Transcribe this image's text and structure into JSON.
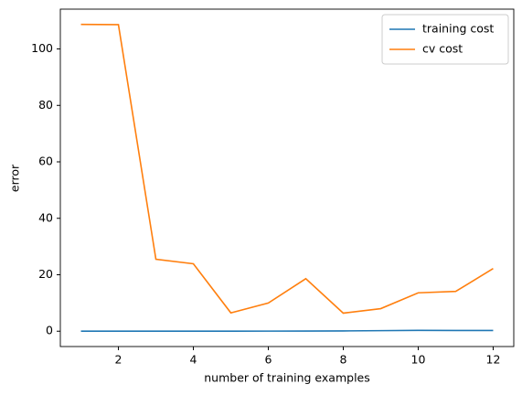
{
  "chart_data": {
    "type": "line",
    "xlabel": "number of training examples",
    "ylabel": "error",
    "x": [
      1,
      2,
      3,
      4,
      5,
      6,
      7,
      8,
      9,
      10,
      11,
      12
    ],
    "series": [
      {
        "name": "training cost",
        "color": "#1f77b4",
        "values": [
          0,
          0,
          0,
          0.01,
          0.02,
          0.04,
          0.05,
          0.1,
          0.2,
          0.3,
          0.25,
          0.25
        ]
      },
      {
        "name": "cv cost",
        "color": "#ff7f0e",
        "values": [
          108.7,
          108.6,
          25.5,
          23.9,
          6.5,
          10.0,
          18.6,
          6.4,
          8.0,
          13.6,
          14.1,
          22.2
        ]
      }
    ],
    "xlim": [
      0.45,
      12.55
    ],
    "ylim": [
      -5.43,
      114.1
    ],
    "xticks": [
      2,
      4,
      6,
      8,
      10,
      12
    ],
    "yticks": [
      0,
      20,
      40,
      60,
      80,
      100
    ],
    "legend": "upper right"
  }
}
